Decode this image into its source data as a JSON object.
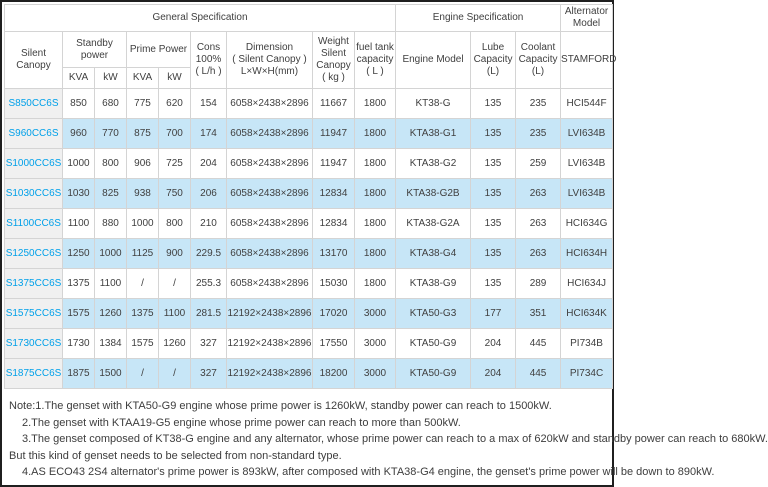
{
  "table": {
    "sections": {
      "general": "General Specification",
      "engine": "Engine Specification",
      "alternator_lines": [
        "Alternator",
        "Model"
      ]
    },
    "headers": {
      "silent_canopy": "Silent Canopy",
      "standby_power": [
        "Standby",
        "power"
      ],
      "prime_power": "Prime Power",
      "kva": "KVA",
      "kw": "kW",
      "cons": [
        "Cons",
        "100%",
        "( L/h )"
      ],
      "dimension": [
        "Dimension",
        "( Silent Canopy )",
        "L×W×H(mm)"
      ],
      "weight": [
        "Weight",
        "Silent",
        "Canopy",
        "( kg )"
      ],
      "fuel_tank": [
        "fuel tank",
        "capacity",
        "( L )"
      ],
      "engine_model": "Engine Model",
      "lube": [
        "Lube",
        "Capacity",
        "(L)"
      ],
      "coolant": [
        "Coolant",
        "Capacity",
        "(L)"
      ],
      "stamford": "STAMFORD"
    },
    "rows": [
      {
        "model": "S850CC6S",
        "standby_kva": "850",
        "standby_kw": "680",
        "prime_kva": "775",
        "prime_kw": "620",
        "cons": "154",
        "dimension": "6058×2438×2896",
        "weight": "11667",
        "fuel": "1800",
        "engine": "KT38-G",
        "lube": "135",
        "coolant": "235",
        "stamford": "HCI544F"
      },
      {
        "model": "S960CC6S",
        "standby_kva": "960",
        "standby_kw": "770",
        "prime_kva": "875",
        "prime_kw": "700",
        "cons": "174",
        "dimension": "6058×2438×2896",
        "weight": "11947",
        "fuel": "1800",
        "engine": "KTA38-G1",
        "lube": "135",
        "coolant": "235",
        "stamford": "LVI634B"
      },
      {
        "model": "S1000CC6S",
        "standby_kva": "1000",
        "standby_kw": "800",
        "prime_kva": "906",
        "prime_kw": "725",
        "cons": "204",
        "dimension": "6058×2438×2896",
        "weight": "11947",
        "fuel": "1800",
        "engine": "KTA38-G2",
        "lube": "135",
        "coolant": "259",
        "stamford": "LVI634B"
      },
      {
        "model": "S1030CC6S",
        "standby_kva": "1030",
        "standby_kw": "825",
        "prime_kva": "938",
        "prime_kw": "750",
        "cons": "206",
        "dimension": "6058×2438×2896",
        "weight": "12834",
        "fuel": "1800",
        "engine": "KTA38-G2B",
        "lube": "135",
        "coolant": "263",
        "stamford": "LVI634B"
      },
      {
        "model": "S1100CC6S",
        "standby_kva": "1100",
        "standby_kw": "880",
        "prime_kva": "1000",
        "prime_kw": "800",
        "cons": "210",
        "dimension": "6058×2438×2896",
        "weight": "12834",
        "fuel": "1800",
        "engine": "KTA38-G2A",
        "lube": "135",
        "coolant": "263",
        "stamford": "HCI634G"
      },
      {
        "model": "S1250CC6S",
        "standby_kva": "1250",
        "standby_kw": "1000",
        "prime_kva": "1125",
        "prime_kw": "900",
        "cons": "229.5",
        "dimension": "6058×2438×2896",
        "weight": "13170",
        "fuel": "1800",
        "engine": "KTA38-G4",
        "lube": "135",
        "coolant": "263",
        "stamford": "HCI634H"
      },
      {
        "model": "S1375CC6S",
        "standby_kva": "1375",
        "standby_kw": "1100",
        "prime_kva": "/",
        "prime_kw": "/",
        "cons": "255.3",
        "dimension": "6058×2438×2896",
        "weight": "15030",
        "fuel": "1800",
        "engine": "KTA38-G9",
        "lube": "135",
        "coolant": "289",
        "stamford": "HCI634J"
      },
      {
        "model": "S1575CC6S",
        "standby_kva": "1575",
        "standby_kw": "1260",
        "prime_kva": "1375",
        "prime_kw": "1100",
        "cons": "281.5",
        "dimension": "12192×2438×2896",
        "weight": "17020",
        "fuel": "3000",
        "engine": "KTA50-G3",
        "lube": "177",
        "coolant": "351",
        "stamford": "HCI634K"
      },
      {
        "model": "S1730CC6S",
        "standby_kva": "1730",
        "standby_kw": "1384",
        "prime_kva": "1575",
        "prime_kw": "1260",
        "cons": "327",
        "dimension": "12192×2438×2896",
        "weight": "17550",
        "fuel": "3000",
        "engine": "KTA50-G9",
        "lube": "204",
        "coolant": "445",
        "stamford": "PI734B"
      },
      {
        "model": "S1875CC6S",
        "standby_kva": "1875",
        "standby_kw": "1500",
        "prime_kva": "/",
        "prime_kw": "/",
        "cons": "327",
        "dimension": "12192×2438×2896",
        "weight": "18200",
        "fuel": "3000",
        "engine": "KTA50-G9",
        "lube": "204",
        "coolant": "445",
        "stamford": "PI734C"
      }
    ]
  },
  "notes": {
    "lines": [
      "Note:1.The genset with KTA50-G9 engine whose prime power is 1260kW, standby power can reach to 1500kW.",
      "2.The genset with KTAA19-G5 engine whose prime power can reach to more than 500kW.",
      "3.The genset composed of KT38-G engine and any alternator, whose prime power can reach to a max of 620kW and standby power can reach to 680kW.",
      "But this kind of genset needs to be selected from non-standard type.",
      "4.AS ECO43 2S4 alternator's prime power is 893kW, after composed with KTA38-G4 engine, the genset's prime power will be down to 890kW."
    ]
  },
  "colors": {
    "header_text": "#00a0e9",
    "row_alt_background": "#c7e6f7",
    "model_column_background": "#f0f0f0",
    "grid_border": "#d4d4d4"
  }
}
